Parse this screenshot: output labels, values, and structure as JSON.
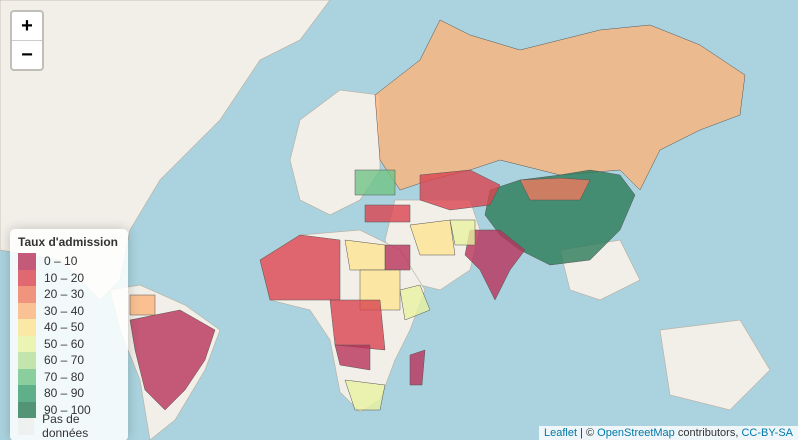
{
  "zoom": {
    "in": "+",
    "out": "−"
  },
  "legend": {
    "title": "Taux d'admission",
    "items": [
      {
        "label": "0 – 10",
        "color": "#b8325a"
      },
      {
        "label": "10 – 20",
        "color": "#d9434f"
      },
      {
        "label": "20 – 30",
        "color": "#f07a5e"
      },
      {
        "label": "30 – 40",
        "color": "#fbb47a"
      },
      {
        "label": "40 – 50",
        "color": "#fde391"
      },
      {
        "label": "50 – 60",
        "color": "#e8f3a0"
      },
      {
        "label": "60 – 70",
        "color": "#b6e09a"
      },
      {
        "label": "70 – 80",
        "color": "#70c386"
      },
      {
        "label": "80 – 90",
        "color": "#3a9e6e"
      },
      {
        "label": "90 – 100",
        "color": "#2b7a56"
      },
      {
        "label": "Pas de données",
        "color": "#eeeeee"
      }
    ]
  },
  "attribution": [
    "Leaflet",
    " | © ",
    "OpenStreetMap",
    " contributors, ",
    "CC-BY-SA"
  ]
}
